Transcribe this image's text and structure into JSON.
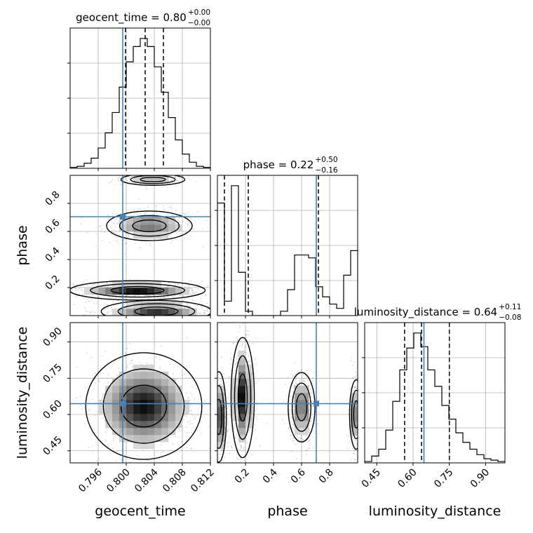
{
  "chart_data": {
    "type": "corner",
    "parameters": [
      "geocent_time",
      "phase",
      "luminosity_distance"
    ],
    "truth_color": "#4682b4",
    "truths": {
      "geocent_time": 0.7995,
      "phase": 0.705,
      "luminosity_distance": 0.645
    },
    "titles": [
      {
        "name": "geocent_time",
        "median": "0.80",
        "plus": "+0.00",
        "minus": "−0.00"
      },
      {
        "name": "phase",
        "median": "0.22",
        "plus": "+0.50",
        "minus": "−0.16"
      },
      {
        "name": "luminosity_distance",
        "median": "0.64",
        "plus": "+0.11",
        "minus": "−0.08"
      }
    ],
    "axes": {
      "geocent_time": {
        "label": "geocent_time",
        "range": [
          0.792,
          0.812
        ],
        "ticks": [
          {
            "value": 0.796,
            "label": "0.796"
          },
          {
            "value": 0.8,
            "label": "0.800"
          },
          {
            "value": 0.804,
            "label": "0.804"
          },
          {
            "value": 0.808,
            "label": "0.808"
          },
          {
            "value": 0.812,
            "label": "0.812"
          }
        ]
      },
      "phase": {
        "label": "phase",
        "range": [
          0.0,
          1.0
        ],
        "ticks": [
          {
            "value": 0.2,
            "label": "0.2"
          },
          {
            "value": 0.4,
            "label": "0.4"
          },
          {
            "value": 0.6,
            "label": "0.6"
          },
          {
            "value": 0.8,
            "label": "0.8"
          }
        ]
      },
      "luminosity_distance": {
        "label": "luminosity_distance",
        "range": [
          0.4,
          0.98
        ],
        "ticks": [
          {
            "value": 0.45,
            "label": "0.45"
          },
          {
            "value": 0.6,
            "label": "0.60"
          },
          {
            "value": 0.75,
            "label": "0.75"
          },
          {
            "value": 0.9,
            "label": "0.90"
          }
        ]
      }
    },
    "histograms": {
      "geocent_time": {
        "bin_start": 0.792,
        "bin_width": 0.001,
        "counts": [
          1,
          2,
          5,
          10,
          20,
          35,
          55,
          80,
          105,
          120,
          128,
          120,
          100,
          75,
          50,
          28,
          14,
          6,
          2,
          1
        ],
        "quantiles": [
          0.7999,
          0.8027,
          0.8053
        ]
      },
      "phase": {
        "bin_start": 0.0,
        "bin_width": 0.05,
        "counts": [
          78,
          10,
          90,
          30,
          3,
          0,
          0,
          0,
          0,
          3,
          18,
          42,
          42,
          40,
          20,
          13,
          8,
          5,
          28,
          45
        ],
        "quantiles": [
          0.05,
          0.22,
          0.72
        ]
      },
      "luminosity_distance": {
        "bin_start": 0.4,
        "bin_width": 0.029,
        "counts": [
          1,
          5,
          10,
          24,
          45,
          68,
          84,
          95,
          85,
          68,
          56,
          42,
          32,
          22,
          15,
          10,
          6,
          3,
          2,
          1
        ],
        "quantiles": [
          0.565,
          0.635,
          0.75
        ]
      }
    },
    "density_modes": {
      "phase_vs_geocent_time": [
        {
          "x": 0.8038,
          "y": 0.97,
          "sx": 0.0022,
          "sy": 0.02,
          "w": 0.25
        },
        {
          "x": 0.8033,
          "y": 0.64,
          "sx": 0.0026,
          "sy": 0.045,
          "w": 0.55
        },
        {
          "x": 0.8016,
          "y": 0.18,
          "sx": 0.0035,
          "sy": 0.025,
          "w": 1.0
        },
        {
          "x": 0.8043,
          "y": 0.03,
          "sx": 0.003,
          "sy": 0.03,
          "w": 0.85
        }
      ],
      "luminosity_distance_vs_geocent_time": [
        {
          "x": 0.8025,
          "y": 0.635,
          "sx": 0.003,
          "sy": 0.08,
          "w": 1.0
        }
      ],
      "luminosity_distance_vs_phase": [
        {
          "x": 0.01,
          "y": 0.59,
          "sx": 0.02,
          "sy": 0.07,
          "w": 0.9
        },
        {
          "x": 0.18,
          "y": 0.67,
          "sx": 0.03,
          "sy": 0.09,
          "w": 1.0
        },
        {
          "x": 0.6,
          "y": 0.63,
          "sx": 0.04,
          "sy": 0.06,
          "w": 0.6
        },
        {
          "x": 0.99,
          "y": 0.6,
          "sx": 0.02,
          "sy": 0.06,
          "w": 0.6
        }
      ]
    }
  }
}
